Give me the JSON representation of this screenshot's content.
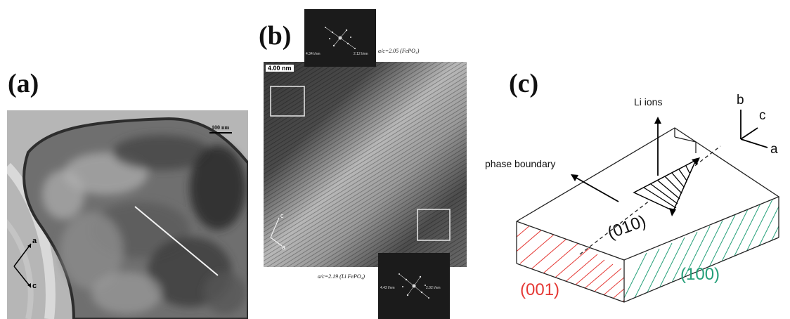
{
  "panel_a": {
    "label": "(a)",
    "scale_bar": "100 nm",
    "axis_a": "a",
    "axis_c": "c"
  },
  "panel_b": {
    "label": "(b)",
    "scale_bar": "4.00 nm",
    "top_caption": "a/c=2.05 (FePO₄)",
    "bottom_caption": "a/c=2.19 (Li FePO₄)",
    "fft_top_left": "4.34 l/nm",
    "fft_top_right": "2.12 l/nm",
    "fft_bottom_left": "4.42 l/nm",
    "fft_bottom_right": "2.02 l/nm",
    "axis_c": "c",
    "axis_a": "a"
  },
  "panel_c": {
    "label": "(c)",
    "li_ions": "Li ions",
    "phase_boundary": "phase boundary",
    "plane_010": "(010)",
    "plane_001": "(001)",
    "plane_100": "(100)",
    "axis_b": "b",
    "axis_c": "c",
    "axis_a": "a",
    "colors": {
      "plane_001": "#e53935",
      "plane_100": "#26a07a",
      "lines": "#222222"
    }
  }
}
